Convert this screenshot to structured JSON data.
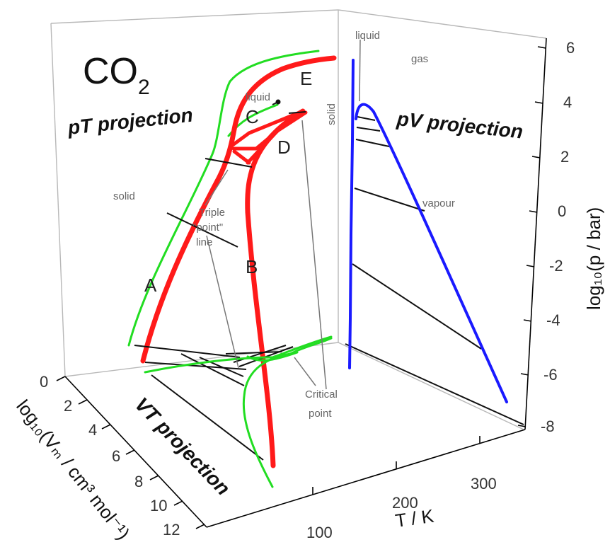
{
  "formula": {
    "main": "CO",
    "sub": "2"
  },
  "projections": {
    "pt": "pT projection",
    "pv": "pV projection",
    "vt": "VT projection"
  },
  "curve_letters": {
    "a": "A",
    "b": "B",
    "c": "C",
    "d": "D",
    "e": "E"
  },
  "phase_labels": {
    "liquid_pt": "liquid",
    "solid_pt_vertical": "solid",
    "solid_left": "solid",
    "liquid_pv": "liquid",
    "gas": "gas",
    "vapour": "vapour"
  },
  "annotations": {
    "triple_line1": "Triple",
    "triple_line2": "\"point\"",
    "triple_line3": "line",
    "critical_line1": "Critical",
    "critical_line2": "point"
  },
  "axes": {
    "pressure": {
      "title": "log₁₀(p / bar)",
      "ticks": [
        "6",
        "4",
        "2",
        "0",
        "-2",
        "-4",
        "-6",
        "-8"
      ]
    },
    "volume": {
      "title": "log₁₀(Vₘ / cm³ mol⁻¹)",
      "ticks": [
        "0",
        "2",
        "4",
        "6",
        "8",
        "10",
        "12"
      ]
    },
    "temperature": {
      "title": "T / K",
      "ticks": [
        "100",
        "200",
        "300"
      ]
    }
  },
  "colors": {
    "pt_curve": "#ff1a1a",
    "vt_curve": "#22dd22",
    "pv_curve": "#1a1aff",
    "frame": "#000000",
    "gridlines": "#b8b8b8"
  }
}
